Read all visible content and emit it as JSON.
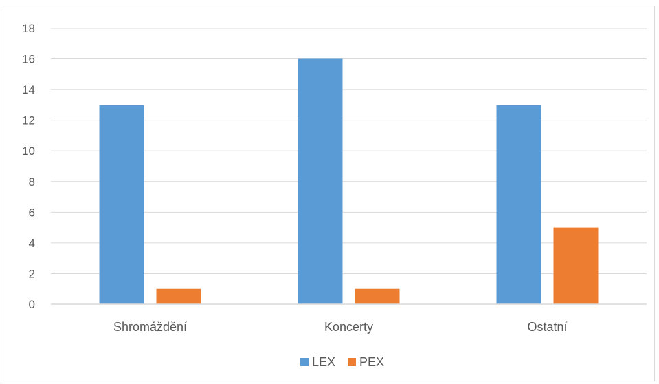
{
  "chart_data": {
    "type": "bar",
    "categories": [
      "Shromáždění",
      "Koncerty",
      "Ostatní"
    ],
    "series": [
      {
        "name": "LEX",
        "values": [
          13,
          16,
          13
        ],
        "color": "#5b9bd5"
      },
      {
        "name": "PEX",
        "values": [
          1,
          1,
          5
        ],
        "color": "#ed7d31"
      }
    ],
    "ylim": [
      0,
      18
    ],
    "yticks": [
      0,
      2,
      4,
      6,
      8,
      10,
      12,
      14,
      16,
      18
    ],
    "grid": true,
    "legend": "bottom-center",
    "title": "",
    "xlabel": "",
    "ylabel": ""
  }
}
